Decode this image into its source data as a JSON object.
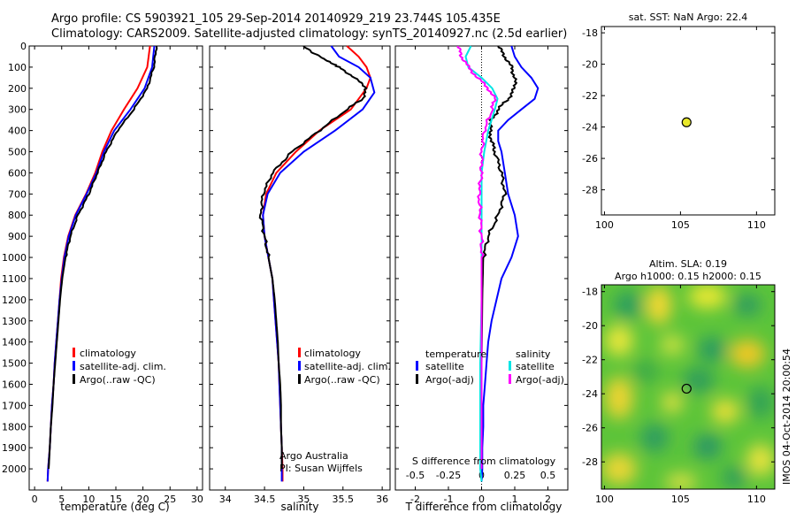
{
  "header": {
    "line1": "Argo profile: CS 5903921_105 29-Sep-2014 20140929_219 23.744S 105.435E",
    "line2": "Climatology: CARS2009. Satellite-adjusted climatology: synTS_20140927.nc (2.5d earlier)"
  },
  "side_label": "IMOS 04-Oct-2014 20:00:54",
  "credits": {
    "line1": "Argo Australia",
    "line2": "PI: Susan Wijffels"
  },
  "colors": {
    "red": "#ff0000",
    "blue": "#0000ff",
    "black": "#000000",
    "cyan": "#00e5e5",
    "magenta": "#ff00ff"
  },
  "chart_data": [
    {
      "type": "line",
      "name": "temperature",
      "xlabel": "temperature (deg C)",
      "ylabel": "",
      "xlim": [
        -1,
        31
      ],
      "ylim": [
        2100,
        0
      ],
      "xticks": [
        0,
        5,
        10,
        15,
        20,
        25,
        30
      ],
      "yticks": [
        0,
        100,
        200,
        300,
        400,
        500,
        600,
        700,
        800,
        900,
        1000,
        1100,
        1200,
        1300,
        1400,
        1500,
        1600,
        1700,
        1800,
        1900,
        2000
      ],
      "legend": [
        "climatology",
        "satellite-adj. clim.",
        "Argo(..raw -QC)"
      ],
      "series": [
        {
          "name": "climatology",
          "color": "#ff0000",
          "points": [
            [
              21.3,
              0
            ],
            [
              20.8,
              100
            ],
            [
              19,
              200
            ],
            [
              16.5,
              300
            ],
            [
              14.2,
              400
            ],
            [
              12.5,
              500
            ],
            [
              11.2,
              600
            ],
            [
              9.5,
              700
            ],
            [
              7.5,
              800
            ],
            [
              6.2,
              900
            ],
            [
              5.4,
              1000
            ],
            [
              4.9,
              1100
            ],
            [
              4.6,
              1200
            ],
            [
              4.3,
              1300
            ],
            [
              4.0,
              1400
            ],
            [
              3.7,
              1500
            ],
            [
              3.5,
              1600
            ],
            [
              3.2,
              1700
            ],
            [
              3.0,
              1800
            ],
            [
              2.8,
              1900
            ],
            [
              2.5,
              2000
            ],
            [
              2.4,
              2060
            ]
          ]
        },
        {
          "name": "satellite-adj. clim.",
          "color": "#0000ff",
          "points": [
            [
              22.1,
              0
            ],
            [
              21.7,
              100
            ],
            [
              20.3,
              200
            ],
            [
              17.7,
              300
            ],
            [
              14.7,
              400
            ],
            [
              12.8,
              500
            ],
            [
              11.4,
              600
            ],
            [
              9.6,
              700
            ],
            [
              7.6,
              800
            ],
            [
              6.3,
              900
            ],
            [
              5.5,
              1000
            ],
            [
              5.0,
              1100
            ],
            [
              4.6,
              1200
            ],
            [
              4.3,
              1300
            ],
            [
              4.0,
              1400
            ],
            [
              3.7,
              1500
            ],
            [
              3.5,
              1600
            ],
            [
              3.2,
              1700
            ],
            [
              3.0,
              1800
            ],
            [
              2.8,
              1900
            ],
            [
              2.5,
              2000
            ],
            [
              2.4,
              2060
            ]
          ]
        },
        {
          "name": "Argo(..raw -QC)",
          "color": "#000000",
          "points": [
            [
              22.5,
              0
            ],
            [
              22.0,
              100
            ],
            [
              20.8,
              200
            ],
            [
              18.3,
              300
            ],
            [
              15.3,
              400
            ],
            [
              13.2,
              500
            ],
            [
              11.6,
              600
            ],
            [
              10.0,
              700
            ],
            [
              8.0,
              800
            ],
            [
              6.6,
              900
            ],
            [
              5.7,
              1000
            ],
            [
              5.1,
              1100
            ],
            [
              4.7,
              1200
            ],
            [
              4.4,
              1300
            ],
            [
              4.1,
              1400
            ],
            [
              3.8,
              1500
            ],
            [
              3.5,
              1600
            ],
            [
              3.3,
              1700
            ],
            [
              3.0,
              1800
            ],
            [
              2.8,
              1900
            ],
            [
              2.6,
              2000
            ]
          ]
        }
      ]
    },
    {
      "type": "line",
      "name": "salinity",
      "xlabel": "salinity",
      "xlim": [
        33.8,
        36.1
      ],
      "ylim": [
        2100,
        0
      ],
      "xticks": [
        34,
        34.5,
        35,
        35.5,
        36
      ],
      "legend": [
        "climatology",
        "satellite-adj. clim.",
        "Argo(..raw -QC)"
      ],
      "series": [
        {
          "name": "climatology",
          "color": "#ff0000",
          "points": [
            [
              35.55,
              0
            ],
            [
              35.7,
              50
            ],
            [
              35.8,
              100
            ],
            [
              35.85,
              150
            ],
            [
              35.8,
              200
            ],
            [
              35.6,
              300
            ],
            [
              35.2,
              400
            ],
            [
              34.9,
              500
            ],
            [
              34.65,
              600
            ],
            [
              34.52,
              700
            ],
            [
              34.48,
              800
            ],
            [
              34.5,
              900
            ],
            [
              34.55,
              1000
            ],
            [
              34.6,
              1100
            ],
            [
              34.62,
              1200
            ],
            [
              34.64,
              1300
            ],
            [
              34.66,
              1400
            ],
            [
              34.68,
              1500
            ],
            [
              34.69,
              1600
            ],
            [
              34.7,
              1700
            ],
            [
              34.71,
              1800
            ],
            [
              34.72,
              1900
            ],
            [
              34.73,
              2000
            ],
            [
              34.73,
              2060
            ]
          ]
        },
        {
          "name": "satellite-adj. clim.",
          "color": "#0000ff",
          "points": [
            [
              35.35,
              0
            ],
            [
              35.45,
              50
            ],
            [
              35.7,
              100
            ],
            [
              35.85,
              150
            ],
            [
              35.9,
              220
            ],
            [
              35.75,
              300
            ],
            [
              35.4,
              400
            ],
            [
              35.0,
              500
            ],
            [
              34.7,
              600
            ],
            [
              34.54,
              700
            ],
            [
              34.48,
              800
            ],
            [
              34.5,
              900
            ],
            [
              34.55,
              1000
            ],
            [
              34.6,
              1100
            ],
            [
              34.62,
              1200
            ],
            [
              34.64,
              1300
            ],
            [
              34.66,
              1400
            ],
            [
              34.68,
              1500
            ],
            [
              34.69,
              1600
            ],
            [
              34.7,
              1700
            ],
            [
              34.71,
              1800
            ],
            [
              34.72,
              1900
            ],
            [
              34.72,
              2000
            ],
            [
              34.72,
              2060
            ]
          ]
        },
        {
          "name": "Argo(..raw -QC)",
          "color": "#000000",
          "points": [
            [
              35.0,
              0
            ],
            [
              35.1,
              30
            ],
            [
              35.25,
              60
            ],
            [
              35.45,
              100
            ],
            [
              35.65,
              150
            ],
            [
              35.8,
              200
            ],
            [
              35.75,
              250
            ],
            [
              35.55,
              300
            ],
            [
              35.2,
              400
            ],
            [
              34.85,
              500
            ],
            [
              34.6,
              600
            ],
            [
              34.48,
              700
            ],
            [
              34.45,
              800
            ],
            [
              34.5,
              900
            ],
            [
              34.55,
              1000
            ],
            [
              34.6,
              1100
            ],
            [
              34.63,
              1200
            ],
            [
              34.65,
              1300
            ],
            [
              34.67,
              1400
            ],
            [
              34.68,
              1500
            ],
            [
              34.7,
              1600
            ],
            [
              34.71,
              1700
            ],
            [
              34.71,
              1800
            ],
            [
              34.72,
              1900
            ],
            [
              34.72,
              2000
            ]
          ]
        }
      ]
    },
    {
      "type": "line",
      "name": "difference",
      "xlabel": "T difference from climatology",
      "top_label": "S difference from climatology",
      "xlim": [
        -2.6,
        2.6
      ],
      "ylim": [
        2100,
        0
      ],
      "xticks": [
        -2,
        -1,
        0,
        1,
        2
      ],
      "top_ticks": [
        -0.5,
        -0.25,
        0,
        0.25,
        0.5
      ],
      "top_tick_labels": [
        "-0.5",
        "-0.25",
        "0",
        "0.25",
        "0.5"
      ],
      "s_scale": 4,
      "legend_group_t": "temperature",
      "legend_group_s": "salinity",
      "legend_t": [
        "satellite",
        "Argo(-adj)"
      ],
      "legend_s": [
        "satellite",
        "Argo(-adj)"
      ],
      "series": [
        {
          "name": "T satellite",
          "color": "#0000ff",
          "points": [
            [
              0.9,
              0
            ],
            [
              1.0,
              50
            ],
            [
              1.2,
              100
            ],
            [
              1.5,
              150
            ],
            [
              1.7,
              200
            ],
            [
              1.6,
              250
            ],
            [
              1.2,
              300
            ],
            [
              0.8,
              350
            ],
            [
              0.5,
              400
            ],
            [
              0.5,
              450
            ],
            [
              0.6,
              500
            ],
            [
              0.7,
              600
            ],
            [
              0.8,
              700
            ],
            [
              1.0,
              800
            ],
            [
              1.1,
              900
            ],
            [
              0.9,
              1000
            ],
            [
              0.6,
              1100
            ],
            [
              0.45,
              1200
            ],
            [
              0.3,
              1300
            ],
            [
              0.2,
              1400
            ],
            [
              0.15,
              1500
            ],
            [
              0.1,
              1600
            ],
            [
              0.05,
              1700
            ],
            [
              0.05,
              1800
            ],
            [
              0.02,
              1900
            ],
            [
              0.02,
              2000
            ],
            [
              0.0,
              2060
            ]
          ]
        },
        {
          "name": "T Argo(-adj)",
          "color": "#000000",
          "points": [
            [
              0.5,
              0
            ],
            [
              0.7,
              50
            ],
            [
              0.9,
              100
            ],
            [
              1.0,
              150
            ],
            [
              1.0,
              200
            ],
            [
              0.8,
              250
            ],
            [
              0.5,
              300
            ],
            [
              0.3,
              350
            ],
            [
              0.25,
              400
            ],
            [
              0.3,
              450
            ],
            [
              0.4,
              500
            ],
            [
              0.6,
              600
            ],
            [
              0.7,
              700
            ],
            [
              0.5,
              800
            ],
            [
              0.2,
              900
            ],
            [
              0.05,
              1000
            ],
            [
              0.02,
              1200
            ],
            [
              0.0,
              1500
            ],
            [
              0.0,
              1800
            ],
            [
              0.0,
              2000
            ]
          ]
        },
        {
          "name": "S satellite",
          "color": "#00e5e5",
          "points": [
            [
              -0.08,
              0
            ],
            [
              -0.12,
              50
            ],
            [
              -0.1,
              100
            ],
            [
              0.0,
              150
            ],
            [
              0.08,
              200
            ],
            [
              0.12,
              250
            ],
            [
              0.1,
              300
            ],
            [
              0.05,
              400
            ],
            [
              0.02,
              500
            ],
            [
              0.0,
              600
            ],
            [
              0.0,
              700
            ],
            [
              0.0,
              800
            ],
            [
              0.0,
              900
            ],
            [
              0.0,
              1000
            ],
            [
              0.0,
              1200
            ],
            [
              -0.01,
              1500
            ],
            [
              -0.01,
              1700
            ],
            [
              -0.01,
              2000
            ],
            [
              0.0,
              2060
            ]
          ]
        },
        {
          "name": "S Argo(-adj)",
          "color": "#ff00ff",
          "points": [
            [
              -0.18,
              0
            ],
            [
              -0.15,
              50
            ],
            [
              -0.1,
              100
            ],
            [
              -0.03,
              150
            ],
            [
              0.05,
              200
            ],
            [
              0.1,
              250
            ],
            [
              0.08,
              300
            ],
            [
              0.02,
              400
            ],
            [
              0.0,
              500
            ],
            [
              0.0,
              600
            ],
            [
              -0.02,
              700
            ],
            [
              -0.01,
              800
            ],
            [
              0.0,
              900
            ],
            [
              0.0,
              1000
            ],
            [
              0.0,
              1200
            ],
            [
              0.0,
              1500
            ],
            [
              0.0,
              1800
            ],
            [
              0.0,
              2000
            ]
          ]
        }
      ]
    },
    {
      "type": "scatter",
      "name": "sst-map",
      "title": "sat. SST: NaN Argo: 22.4",
      "xlim": [
        99.8,
        111.2
      ],
      "ylim": [
        -29.6,
        -17.6
      ],
      "xticks": [
        100,
        105,
        110
      ],
      "yticks": [
        -18,
        -20,
        -22,
        -24,
        -26,
        -28
      ],
      "points": [
        {
          "x": 105.4,
          "y": -23.7
        }
      ]
    },
    {
      "type": "heatmap",
      "name": "sla-map",
      "title_line1": "Altim. SLA: 0.19",
      "title_line2": "Argo h1000: 0.15 h2000: 0.15",
      "xlim": [
        99.8,
        111.2
      ],
      "ylim": [
        -29.6,
        -17.6
      ],
      "xticks": [
        100,
        105,
        110
      ],
      "yticks": [
        -18,
        -20,
        -22,
        -24,
        -26,
        -28
      ],
      "points": [
        {
          "x": 105.4,
          "y": -23.7
        }
      ]
    }
  ]
}
